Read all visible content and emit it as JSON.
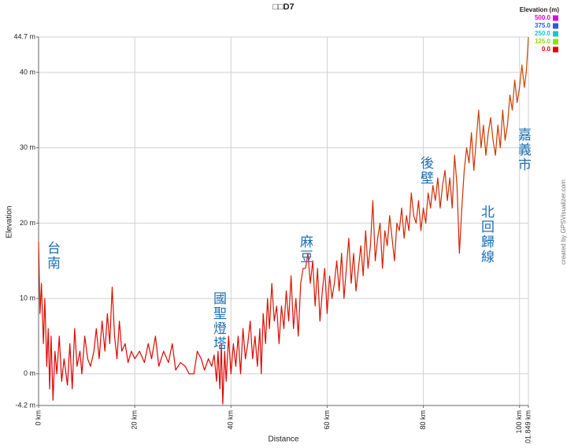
{
  "chart_data": {
    "type": "line",
    "title": "□□D7",
    "x_label": "Distance",
    "y_label": "Elevation",
    "credit": "created by GPSVisualizer.com",
    "legend_title": "Elevation (m)",
    "color_scale": [
      {
        "value": 500,
        "label": "500.0",
        "color": "#e000e0"
      },
      {
        "value": 375,
        "label": "375.0",
        "color": "#2060e0"
      },
      {
        "value": 250,
        "label": "250.0",
        "color": "#10c8c8"
      },
      {
        "value": 125,
        "label": "125.0",
        "color": "#90e000"
      },
      {
        "value": 0,
        "label": "0.0",
        "color": "#e00000"
      }
    ],
    "annotations": [
      "台南",
      "國聖燈塔",
      "麻豆",
      "後壁",
      "北回歸線",
      "嘉義市"
    ],
    "grid": true,
    "xlim": [
      0,
      101.849
    ],
    "ylim": [
      -4.2,
      44.7
    ],
    "xticks": [
      {
        "value": 0,
        "label": "0 km"
      },
      {
        "value": 20,
        "label": "20 km"
      },
      {
        "value": 40,
        "label": "40 km"
      },
      {
        "value": 60,
        "label": "60 km"
      },
      {
        "value": 80,
        "label": "80 km"
      },
      {
        "value": 100,
        "label": "100 km"
      },
      {
        "value": 101.849,
        "label": "101.849 km"
      }
    ],
    "yticks": [
      {
        "value": -4.2,
        "label": "-4.2 m"
      },
      {
        "value": 0,
        "label": "0 m"
      },
      {
        "value": 10,
        "label": "10 m"
      },
      {
        "value": 20,
        "label": "20 m"
      },
      {
        "value": 30,
        "label": "30 m"
      },
      {
        "value": 40,
        "label": "40 m"
      },
      {
        "value": 44.7,
        "label": "44.7 m"
      }
    ],
    "x": [
      0,
      0.3,
      0.6,
      1,
      1.3,
      1.7,
      2,
      2.3,
      2.6,
      3,
      3.4,
      3.8,
      4.3,
      4.8,
      5.3,
      6,
      6.5,
      7,
      7.5,
      8,
      8.6,
      9,
      9.6,
      10.2,
      10.8,
      11.5,
      12,
      12.6,
      13.2,
      13.8,
      14.3,
      14.8,
      15.3,
      15.8,
      16.3,
      16.8,
      17.3,
      18,
      18.6,
      19.3,
      20,
      21,
      22,
      22.8,
      23.5,
      24.3,
      25,
      26,
      27,
      27.8,
      28.5,
      29.5,
      30.5,
      31.3,
      32.3,
      33,
      33.8,
      34.5,
      35.3,
      36,
      36.5,
      37,
      37.3,
      37.7,
      38,
      38.3,
      38.7,
      39,
      39.5,
      40,
      40.5,
      41,
      41.5,
      42,
      42.5,
      43,
      43.5,
      44,
      44.5,
      45,
      45.5,
      46,
      46.3,
      46.7,
      47.2,
      47.6,
      48,
      48.5,
      49,
      49.5,
      50,
      50.5,
      51,
      51.5,
      52,
      52.5,
      53,
      53.5,
      54,
      54.5,
      55,
      55.5,
      56,
      56.5,
      57,
      57.5,
      58,
      58.5,
      59,
      59.5,
      60,
      60.5,
      61,
      61.5,
      62,
      62.5,
      63,
      63.5,
      64,
      64.5,
      65,
      65.5,
      66,
      66.5,
      67,
      67.5,
      68,
      68.5,
      69,
      69.5,
      70,
      70.5,
      71,
      71.5,
      72,
      72.5,
      73,
      73.5,
      74,
      74.5,
      75,
      75.5,
      76,
      76.5,
      77,
      77.5,
      78,
      78.5,
      79,
      79.5,
      80,
      80.5,
      81,
      81.5,
      82,
      82.5,
      83,
      83.5,
      84,
      84.5,
      85,
      85.5,
      86,
      86.5,
      87,
      87.5,
      88,
      88.5,
      89,
      89.5,
      90,
      90.5,
      91,
      91.5,
      92,
      92.5,
      93,
      93.5,
      94,
      94.5,
      95,
      95.5,
      96,
      96.5,
      97,
      97.5,
      98,
      98.5,
      99,
      99.5,
      100,
      100.5,
      101,
      101.4,
      101.849
    ],
    "values": [
      17.5,
      8,
      12,
      4,
      10,
      1,
      6,
      -2,
      5,
      -3.5,
      3,
      0,
      5,
      -1,
      2,
      -1.5,
      4,
      -2,
      6,
      1,
      3,
      0,
      5,
      2,
      1,
      3,
      6,
      2,
      7,
      3,
      8,
      4,
      11.5,
      5,
      2,
      7,
      3,
      4,
      1.5,
      3,
      2,
      3,
      1.5,
      4,
      2,
      5,
      1,
      3,
      1.5,
      4,
      0.5,
      1.5,
      1,
      0,
      0,
      3,
      2,
      0.5,
      2,
      1,
      2.5,
      -1,
      3,
      -2,
      4,
      -4,
      3,
      -1,
      5,
      0,
      4,
      1,
      5,
      0,
      6,
      2,
      4,
      7,
      2,
      5,
      1,
      6,
      0,
      8,
      4,
      10,
      6,
      12,
      7,
      9,
      4,
      9,
      6,
      11,
      7,
      13,
      6,
      10,
      5,
      12,
      14,
      14,
      16,
      12,
      15,
      9,
      14,
      7,
      11,
      14,
      8,
      13,
      10,
      12,
      15,
      11,
      16,
      10,
      14,
      18,
      12,
      16,
      11,
      14,
      17,
      13,
      19,
      14,
      17,
      23,
      15,
      18,
      20,
      14,
      19,
      17,
      21,
      18,
      15,
      20,
      19,
      22,
      18,
      21,
      19,
      24,
      21,
      20,
      23,
      19,
      22,
      20,
      24,
      22,
      25,
      23,
      26,
      22,
      25,
      27,
      23,
      26,
      22,
      29,
      25,
      16,
      22,
      27,
      30,
      28,
      32,
      27,
      31,
      35,
      30,
      33,
      29,
      32,
      34,
      31,
      29,
      33,
      30,
      35,
      31,
      33,
      37,
      35,
      39,
      36,
      38,
      41,
      38,
      40,
      44.7
    ]
  }
}
